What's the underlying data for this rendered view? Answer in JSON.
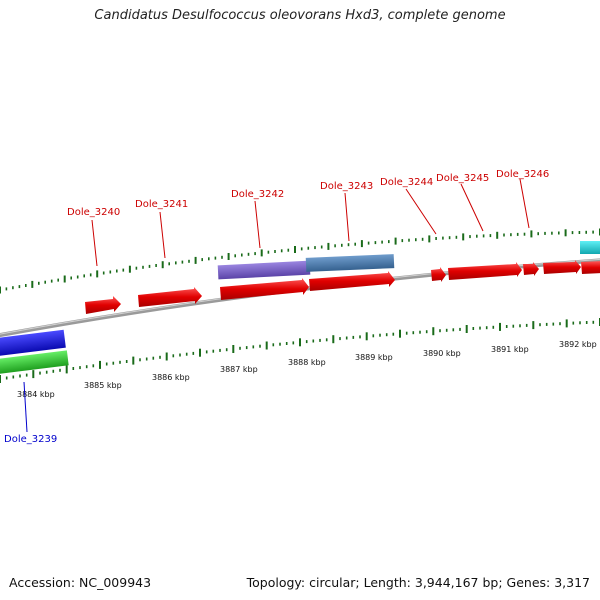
{
  "title": "Candidatus Desulfococcus oleovorans Hxd3, complete genome",
  "footer": {
    "accession": "Accession: NC_009943",
    "topology": "Topology: circular; Length: 3,944,167 bp; Genes: 3,317"
  },
  "scale_labels": [
    "3884 kbp",
    "3885 kbp",
    "3886 kbp",
    "3887 kbp",
    "3888 kbp",
    "3889 kbp",
    "3890 kbp",
    "3891 kbp",
    "3892 kbp"
  ],
  "gene_labels": [
    "Dole_3239",
    "Dole_3240",
    "Dole_3241",
    "Dole_3242",
    "Dole_3243",
    "Dole_3244",
    "Dole_3245",
    "Dole_3246"
  ],
  "colors": {
    "forward_gene": "#e00000",
    "gene_label_forward": "#cc0000",
    "gene_label_reverse": "#0000cc",
    "tick": "#1a6b1a",
    "backbone": "#808080",
    "feature_blue": "#1a1ae0",
    "feature_green": "#33cc33",
    "feature_purple": "#7b5fc8",
    "feature_steelblue": "#4f7fb0",
    "feature_cyan": "#22d0d8"
  }
}
